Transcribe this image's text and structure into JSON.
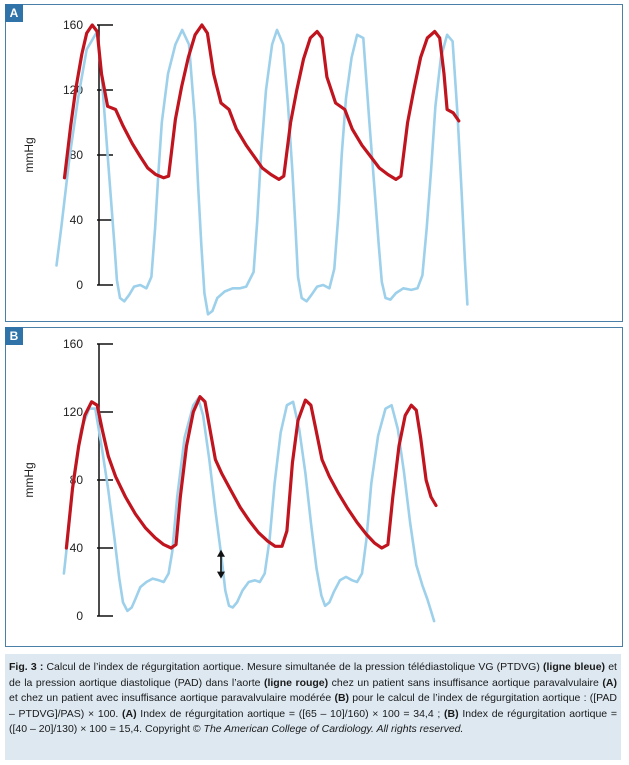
{
  "chart_data": [
    {
      "type": "line",
      "panel_label": "A",
      "ylabel": "mmHg",
      "ylim": [
        0,
        160
      ],
      "yticks": [
        0,
        40,
        80,
        120,
        160
      ],
      "grid": false,
      "series": [
        {
          "name": "ligne rouge",
          "color": "#c0141e",
          "points": [
            [
              0.095,
              66
            ],
            [
              0.105,
              98
            ],
            [
              0.113,
              120
            ],
            [
              0.123,
              142
            ],
            [
              0.131,
              155
            ],
            [
              0.14,
              160
            ],
            [
              0.148,
              156
            ],
            [
              0.155,
              130
            ],
            [
              0.165,
              110
            ],
            [
              0.178,
              108
            ],
            [
              0.19,
              98
            ],
            [
              0.205,
              87
            ],
            [
              0.218,
              79
            ],
            [
              0.23,
              72
            ],
            [
              0.243,
              68
            ],
            [
              0.256,
              66
            ],
            [
              0.264,
              67
            ],
            [
              0.275,
              102
            ],
            [
              0.285,
              122
            ],
            [
              0.296,
              140
            ],
            [
              0.307,
              154
            ],
            [
              0.318,
              160
            ],
            [
              0.327,
              155
            ],
            [
              0.337,
              130
            ],
            [
              0.349,
              112
            ],
            [
              0.362,
              108
            ],
            [
              0.374,
              96
            ],
            [
              0.39,
              86
            ],
            [
              0.403,
              79
            ],
            [
              0.416,
              72
            ],
            [
              0.43,
              68
            ],
            [
              0.443,
              65
            ],
            [
              0.451,
              67
            ],
            [
              0.462,
              100
            ],
            [
              0.472,
              120
            ],
            [
              0.483,
              139
            ],
            [
              0.494,
              152
            ],
            [
              0.505,
              156
            ],
            [
              0.513,
              152
            ],
            [
              0.521,
              128
            ],
            [
              0.535,
              112
            ],
            [
              0.55,
              108
            ],
            [
              0.562,
              96
            ],
            [
              0.578,
              86
            ],
            [
              0.592,
              79
            ],
            [
              0.606,
              72
            ],
            [
              0.62,
              68
            ],
            [
              0.633,
              65
            ],
            [
              0.641,
              67
            ],
            [
              0.652,
              100
            ],
            [
              0.662,
              120
            ],
            [
              0.673,
              140
            ],
            [
              0.684,
              152
            ],
            [
              0.696,
              156
            ],
            [
              0.704,
              152
            ],
            [
              0.711,
              130
            ],
            [
              0.716,
              108
            ],
            [
              0.726,
              106
            ],
            [
              0.735,
              101
            ]
          ]
        },
        {
          "name": "ligne bleue",
          "color": "#9dd0ea",
          "points": [
            [
              0.082,
              12
            ],
            [
              0.09,
              36
            ],
            [
              0.103,
              78
            ],
            [
              0.117,
              115
            ],
            [
              0.131,
              145
            ],
            [
              0.148,
              156
            ],
            [
              0.155,
              130
            ],
            [
              0.163,
              90
            ],
            [
              0.17,
              55
            ],
            [
              0.176,
              25
            ],
            [
              0.18,
              3
            ],
            [
              0.185,
              -8
            ],
            [
              0.192,
              -10
            ],
            [
              0.2,
              -6
            ],
            [
              0.208,
              -1
            ],
            [
              0.218,
              0
            ],
            [
              0.228,
              -2
            ],
            [
              0.236,
              5
            ],
            [
              0.242,
              35
            ],
            [
              0.247,
              67
            ],
            [
              0.253,
              100
            ],
            [
              0.263,
              130
            ],
            [
              0.275,
              148
            ],
            [
              0.286,
              157
            ],
            [
              0.297,
              148
            ],
            [
              0.307,
              100
            ],
            [
              0.312,
              60
            ],
            [
              0.317,
              25
            ],
            [
              0.322,
              -5
            ],
            [
              0.328,
              -18
            ],
            [
              0.335,
              -16
            ],
            [
              0.343,
              -8
            ],
            [
              0.355,
              -4
            ],
            [
              0.368,
              -2
            ],
            [
              0.38,
              -2
            ],
            [
              0.39,
              -1
            ],
            [
              0.402,
              8
            ],
            [
              0.408,
              40
            ],
            [
              0.414,
              80
            ],
            [
              0.422,
              120
            ],
            [
              0.432,
              148
            ],
            [
              0.44,
              157
            ],
            [
              0.45,
              148
            ],
            [
              0.458,
              110
            ],
            [
              0.465,
              70
            ],
            [
              0.47,
              35
            ],
            [
              0.474,
              5
            ],
            [
              0.48,
              -8
            ],
            [
              0.488,
              -10
            ],
            [
              0.496,
              -6
            ],
            [
              0.505,
              -1
            ],
            [
              0.515,
              0
            ],
            [
              0.525,
              -2
            ],
            [
              0.533,
              10
            ],
            [
              0.54,
              45
            ],
            [
              0.545,
              80
            ],
            [
              0.552,
              115
            ],
            [
              0.561,
              140
            ],
            [
              0.57,
              154
            ],
            [
              0.58,
              152
            ],
            [
              0.59,
              100
            ],
            [
              0.598,
              60
            ],
            [
              0.605,
              25
            ],
            [
              0.61,
              2
            ],
            [
              0.616,
              -8
            ],
            [
              0.624,
              -9
            ],
            [
              0.633,
              -5
            ],
            [
              0.645,
              -2
            ],
            [
              0.658,
              -3
            ],
            [
              0.668,
              -2
            ],
            [
              0.676,
              6
            ],
            [
              0.683,
              35
            ],
            [
              0.69,
              70
            ],
            [
              0.697,
              110
            ],
            [
              0.706,
              140
            ],
            [
              0.716,
              154
            ],
            [
              0.725,
              150
            ],
            [
              0.733,
              105
            ],
            [
              0.74,
              55
            ],
            [
              0.745,
              15
            ],
            [
              0.749,
              -12
            ]
          ]
        }
      ]
    },
    {
      "type": "line",
      "panel_label": "B",
      "ylabel": "mmHg",
      "ylim": [
        0,
        160
      ],
      "yticks": [
        0,
        40,
        80,
        120,
        160
      ],
      "grid": false,
      "annotation": "double-headed arrow between the minima at ~40 and ~20 mmHg",
      "series": [
        {
          "name": "ligne rouge",
          "color": "#c0141e",
          "points": [
            [
              0.098,
              40
            ],
            [
              0.108,
              75
            ],
            [
              0.118,
              100
            ],
            [
              0.128,
              118
            ],
            [
              0.139,
              126
            ],
            [
              0.148,
              124
            ],
            [
              0.156,
              110
            ],
            [
              0.166,
              94
            ],
            [
              0.178,
              82
            ],
            [
              0.194,
              70
            ],
            [
              0.21,
              60
            ],
            [
              0.226,
              52
            ],
            [
              0.242,
              46
            ],
            [
              0.256,
              42
            ],
            [
              0.268,
              40
            ],
            [
              0.276,
              42
            ],
            [
              0.283,
              70
            ],
            [
              0.293,
              100
            ],
            [
              0.304,
              120
            ],
            [
              0.315,
              129
            ],
            [
              0.323,
              126
            ],
            [
              0.33,
              112
            ],
            [
              0.34,
              92
            ],
            [
              0.35,
              84
            ],
            [
              0.365,
              74
            ],
            [
              0.38,
              64
            ],
            [
              0.395,
              56
            ],
            [
              0.41,
              49
            ],
            [
              0.425,
              44
            ],
            [
              0.437,
              41
            ],
            [
              0.448,
              41
            ],
            [
              0.456,
              50
            ],
            [
              0.465,
              90
            ],
            [
              0.474,
              115
            ],
            [
              0.486,
              127
            ],
            [
              0.495,
              124
            ],
            [
              0.503,
              110
            ],
            [
              0.513,
              92
            ],
            [
              0.525,
              82
            ],
            [
              0.54,
              72
            ],
            [
              0.555,
              63
            ],
            [
              0.57,
              55
            ],
            [
              0.585,
              48
            ],
            [
              0.598,
              43
            ],
            [
              0.61,
              40
            ],
            [
              0.62,
              42
            ],
            [
              0.628,
              70
            ],
            [
              0.638,
              100
            ],
            [
              0.648,
              118
            ],
            [
              0.658,
              124
            ],
            [
              0.666,
              121
            ],
            [
              0.673,
              105
            ],
            [
              0.682,
              80
            ],
            [
              0.69,
              70
            ],
            [
              0.698,
              65
            ]
          ]
        },
        {
          "name": "ligne bleue",
          "color": "#9dd0ea",
          "points": [
            [
              0.094,
              25
            ],
            [
              0.1,
              45
            ],
            [
              0.11,
              82
            ],
            [
              0.122,
              110
            ],
            [
              0.135,
              122
            ],
            [
              0.145,
              122
            ],
            [
              0.156,
              98
            ],
            [
              0.166,
              74
            ],
            [
              0.176,
              46
            ],
            [
              0.184,
              22
            ],
            [
              0.19,
              8
            ],
            [
              0.197,
              3
            ],
            [
              0.204,
              5
            ],
            [
              0.21,
              10
            ],
            [
              0.218,
              17
            ],
            [
              0.228,
              20
            ],
            [
              0.238,
              22
            ],
            [
              0.248,
              21
            ],
            [
              0.256,
              20
            ],
            [
              0.264,
              25
            ],
            [
              0.27,
              38
            ],
            [
              0.278,
              70
            ],
            [
              0.29,
              105
            ],
            [
              0.304,
              124
            ],
            [
              0.312,
              128
            ],
            [
              0.32,
              118
            ],
            [
              0.33,
              92
            ],
            [
              0.34,
              62
            ],
            [
              0.35,
              34
            ],
            [
              0.356,
              15
            ],
            [
              0.362,
              6
            ],
            [
              0.368,
              5
            ],
            [
              0.375,
              8
            ],
            [
              0.384,
              15
            ],
            [
              0.394,
              20
            ],
            [
              0.404,
              21
            ],
            [
              0.412,
              20
            ],
            [
              0.42,
              25
            ],
            [
              0.428,
              45
            ],
            [
              0.436,
              78
            ],
            [
              0.446,
              108
            ],
            [
              0.456,
              124
            ],
            [
              0.466,
              126
            ],
            [
              0.476,
              110
            ],
            [
              0.486,
              84
            ],
            [
              0.495,
              55
            ],
            [
              0.504,
              28
            ],
            [
              0.512,
              12
            ],
            [
              0.518,
              6
            ],
            [
              0.525,
              8
            ],
            [
              0.532,
              14
            ],
            [
              0.542,
              21
            ],
            [
              0.552,
              23
            ],
            [
              0.562,
              21
            ],
            [
              0.57,
              20
            ],
            [
              0.578,
              25
            ],
            [
              0.585,
              45
            ],
            [
              0.593,
              78
            ],
            [
              0.604,
              106
            ],
            [
              0.616,
              122
            ],
            [
              0.626,
              124
            ],
            [
              0.636,
              110
            ],
            [
              0.646,
              85
            ],
            [
              0.656,
              55
            ],
            [
              0.666,
              30
            ],
            [
              0.676,
              18
            ],
            [
              0.684,
              10
            ],
            [
              0.69,
              3
            ],
            [
              0.695,
              -3
            ]
          ]
        }
      ]
    }
  ],
  "caption": {
    "fig_label": "Fig. 3 :",
    "text_1": " Calcul de l’index de régurgitation aortique. Mesure simultanée de la pression télédiastolique VG (PTDVG) ",
    "bold_1": "(ligne bleue)",
    "text_2": " et de la pression aortique diastolique (PAD) dans l’aorte ",
    "bold_2": "(ligne rouge)",
    "text_3": " chez un patient sans insuffisance aortique paravalvulaire ",
    "bold_3": "(A)",
    "text_4": " et chez un patient avec insuffisance aortique paravalvulaire modérée ",
    "bold_4": "(B)",
    "text_5": " pour le calcul de l’index de régurgitation aortique : ([PAD – PTDVG]/PAS) × 100. ",
    "bold_5": "(A)",
    "text_6": " Index de régurgitation aortique = ([65 – 10]/160) × 100 = 34,4 ; ",
    "bold_6": "(B)",
    "text_7": " Index de régurgitation aortique = ([40 – 20]/130) × 100 = 15,4. Copyright © ",
    "italic_1": "The American College of Cardiology. All rights reserved."
  }
}
